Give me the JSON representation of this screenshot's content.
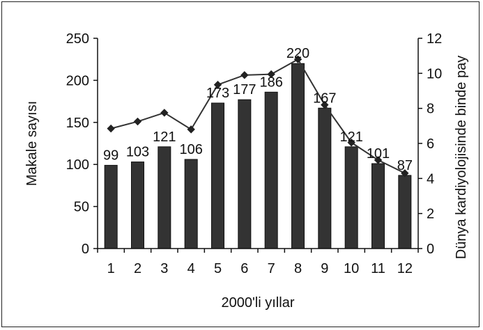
{
  "chart_data": {
    "type": "bar",
    "categories": [
      "1",
      "2",
      "3",
      "4",
      "5",
      "6",
      "7",
      "8",
      "9",
      "10",
      "11",
      "12"
    ],
    "series": [
      {
        "values": [
          99,
          103,
          121,
          106,
          173,
          177,
          186,
          220,
          167,
          121,
          101,
          87
        ],
        "data_labels": [
          "99",
          "103",
          "121",
          "106",
          "173",
          "177",
          "186",
          "220",
          "167",
          "121",
          "101",
          "87"
        ],
        "axis": "left",
        "color": "#333333"
      },
      {
        "values": [
          6.85,
          7.25,
          7.75,
          6.8,
          9.35,
          9.9,
          9.95,
          10.8,
          8.2,
          6.05,
          5.05,
          4.3
        ],
        "axis": "right",
        "kind": "line",
        "color": "#333333",
        "marker": "diamond"
      }
    ],
    "xlabel": "2000'li yıllar",
    "ylabel": "Makale sayısı",
    "y2label": "Dünya kardiyolojisinde binde pay",
    "ylim": [
      0,
      250
    ],
    "y2lim": [
      0,
      12
    ],
    "yticks": [
      "0",
      "50",
      "100",
      "150",
      "200",
      "250"
    ],
    "y2ticks": [
      "0",
      "2",
      "4",
      "6",
      "8",
      "10",
      "12"
    ],
    "grid": false,
    "legend": "none"
  }
}
